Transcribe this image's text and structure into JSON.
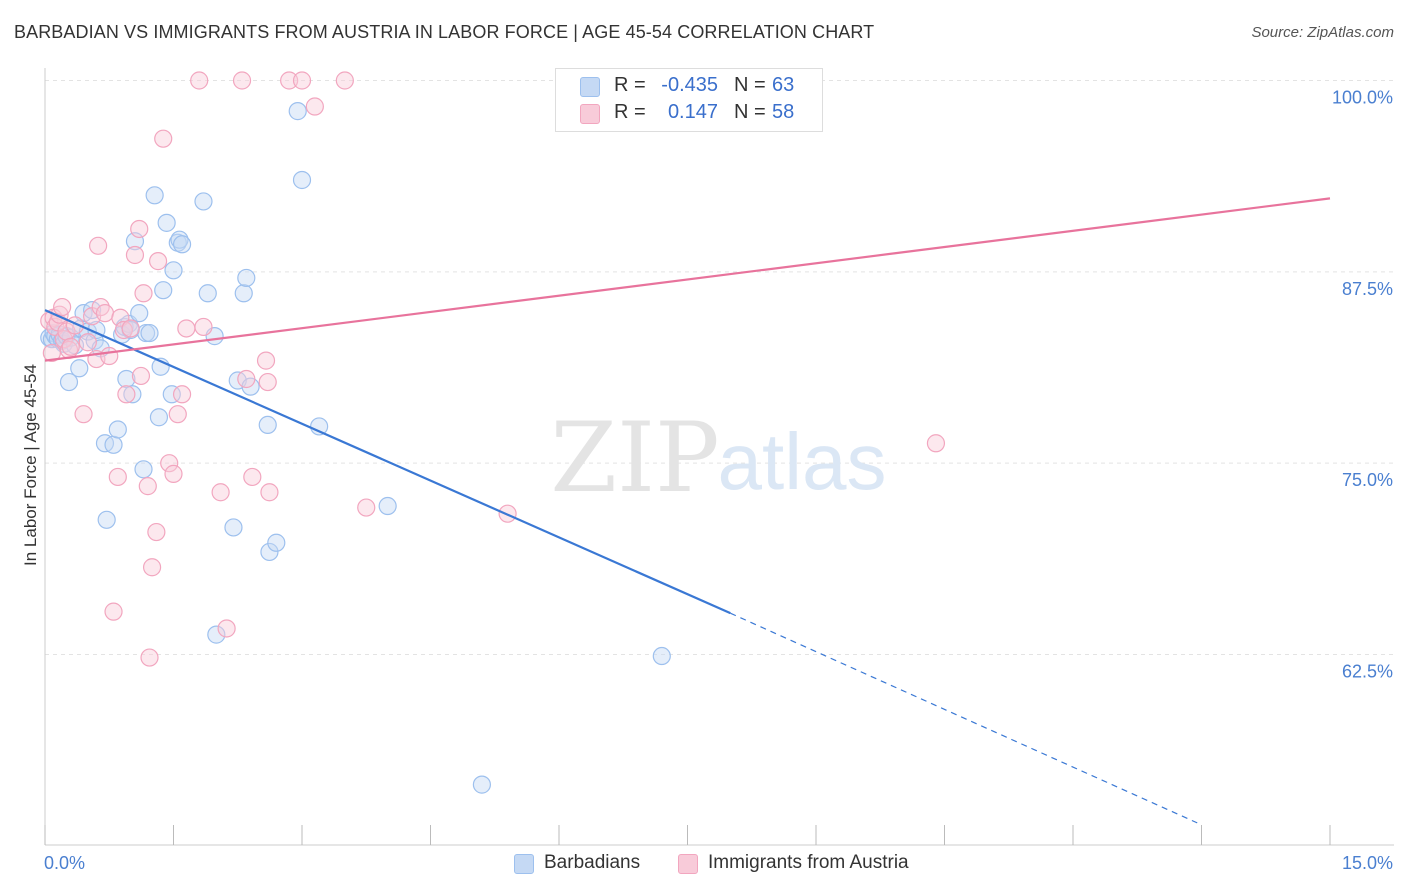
{
  "title": "BARBADIAN VS IMMIGRANTS FROM AUSTRIA IN LABOR FORCE | AGE 45-54 CORRELATION CHART",
  "source": "Source: ZipAtlas.com",
  "watermark": {
    "zip": "ZIP",
    "atlas": "atlas"
  },
  "legend": {
    "r_label": "R =",
    "n_label": "N =",
    "series": [
      {
        "name": "Barbadians",
        "r": "-0.435",
        "n": "63",
        "color": "#9dc0ee",
        "fill": "#c5d9f4"
      },
      {
        "name": "Immigrants from Austria",
        "r": "0.147",
        "n": "58",
        "color": "#f2a6bf",
        "fill": "#f8cbd9"
      }
    ]
  },
  "chart_data": {
    "type": "scatter",
    "title": "BARBADIAN VS IMMIGRANTS FROM AUSTRIA IN LABOR FORCE | AGE 45-54 CORRELATION CHART",
    "xlabel": "",
    "ylabel": "In Labor Force | Age 45-54",
    "xlim": [
      0,
      15
    ],
    "ylim": [
      51,
      102
    ],
    "x_tick_labels": [
      "0.0%",
      "15.0%"
    ],
    "y_ticks": [
      62.5,
      75.0,
      87.5,
      100.0
    ],
    "y_tick_labels": [
      "62.5%",
      "75.0%",
      "87.5%",
      "100.0%"
    ],
    "legend_position": "bottom-center",
    "series": [
      {
        "name": "Barbadians",
        "color": "#3a78d4",
        "r": -0.435,
        "n": 63,
        "trendline": {
          "x": [
            0,
            8.0
          ],
          "y": [
            85.0,
            65.2
          ],
          "dashed_to": {
            "x": 13.45,
            "y": 51.5
          }
        },
        "points": [
          [
            0.05,
            83.2
          ],
          [
            0.08,
            83.1
          ],
          [
            0.1,
            83.5
          ],
          [
            0.12,
            83.3
          ],
          [
            0.15,
            83.1
          ],
          [
            0.17,
            83.4
          ],
          [
            0.2,
            83.0
          ],
          [
            0.22,
            82.8
          ],
          [
            0.25,
            83.3
          ],
          [
            0.28,
            80.3
          ],
          [
            0.3,
            83.2
          ],
          [
            0.35,
            82.7
          ],
          [
            0.4,
            81.2
          ],
          [
            0.42,
            83.8
          ],
          [
            0.45,
            84.8
          ],
          [
            0.5,
            83.6
          ],
          [
            0.55,
            85.0
          ],
          [
            0.58,
            83.0
          ],
          [
            0.6,
            83.7
          ],
          [
            0.65,
            82.5
          ],
          [
            0.7,
            76.3
          ],
          [
            0.72,
            71.3
          ],
          [
            0.8,
            76.2
          ],
          [
            0.85,
            77.2
          ],
          [
            0.9,
            83.4
          ],
          [
            0.93,
            83.9
          ],
          [
            0.95,
            80.5
          ],
          [
            0.98,
            84.1
          ],
          [
            1.0,
            83.7
          ],
          [
            1.02,
            79.5
          ],
          [
            1.05,
            89.5
          ],
          [
            1.1,
            84.8
          ],
          [
            1.15,
            74.6
          ],
          [
            1.18,
            83.5
          ],
          [
            1.22,
            83.5
          ],
          [
            1.28,
            92.5
          ],
          [
            1.33,
            78.0
          ],
          [
            1.35,
            81.3
          ],
          [
            1.38,
            86.3
          ],
          [
            1.42,
            90.7
          ],
          [
            1.48,
            79.5
          ],
          [
            1.5,
            87.6
          ],
          [
            1.55,
            89.4
          ],
          [
            1.57,
            89.6
          ],
          [
            1.6,
            89.3
          ],
          [
            1.85,
            92.1
          ],
          [
            1.9,
            86.1
          ],
          [
            1.98,
            83.3
          ],
          [
            2.0,
            63.8
          ],
          [
            2.2,
            70.8
          ],
          [
            2.25,
            80.4
          ],
          [
            2.32,
            86.1
          ],
          [
            2.35,
            87.1
          ],
          [
            2.4,
            80.0
          ],
          [
            2.6,
            77.5
          ],
          [
            2.62,
            69.2
          ],
          [
            2.7,
            69.8
          ],
          [
            2.95,
            98.0
          ],
          [
            3.0,
            93.5
          ],
          [
            3.2,
            77.4
          ],
          [
            4.0,
            72.2
          ],
          [
            5.1,
            54.0
          ],
          [
            7.2,
            62.4
          ]
        ]
      },
      {
        "name": "Immigrants from Austria",
        "color": "#e8739c",
        "r": 0.147,
        "n": 58,
        "trendline": {
          "x": [
            0,
            15.0
          ],
          "y": [
            81.7,
            92.3
          ]
        },
        "points": [
          [
            0.05,
            84.3
          ],
          [
            0.08,
            82.2
          ],
          [
            0.1,
            84.5
          ],
          [
            0.12,
            83.9
          ],
          [
            0.15,
            84.2
          ],
          [
            0.17,
            84.7
          ],
          [
            0.2,
            85.2
          ],
          [
            0.22,
            83.1
          ],
          [
            0.25,
            83.6
          ],
          [
            0.28,
            82.4
          ],
          [
            0.3,
            82.6
          ],
          [
            0.35,
            84.0
          ],
          [
            0.45,
            78.2
          ],
          [
            0.5,
            82.9
          ],
          [
            0.55,
            84.6
          ],
          [
            0.6,
            81.8
          ],
          [
            0.62,
            89.2
          ],
          [
            0.65,
            85.2
          ],
          [
            0.7,
            84.8
          ],
          [
            0.75,
            82.0
          ],
          [
            0.8,
            65.3
          ],
          [
            0.85,
            74.1
          ],
          [
            0.88,
            84.5
          ],
          [
            0.92,
            83.7
          ],
          [
            0.95,
            79.5
          ],
          [
            1.0,
            83.8
          ],
          [
            1.05,
            88.6
          ],
          [
            1.1,
            90.3
          ],
          [
            1.12,
            80.7
          ],
          [
            1.15,
            86.1
          ],
          [
            1.2,
            73.5
          ],
          [
            1.22,
            62.3
          ],
          [
            1.25,
            68.2
          ],
          [
            1.3,
            70.5
          ],
          [
            1.32,
            88.2
          ],
          [
            1.38,
            96.2
          ],
          [
            1.45,
            75.0
          ],
          [
            1.5,
            74.3
          ],
          [
            1.55,
            78.2
          ],
          [
            1.6,
            79.5
          ],
          [
            1.65,
            83.8
          ],
          [
            1.8,
            100.0
          ],
          [
            1.85,
            83.9
          ],
          [
            2.05,
            73.1
          ],
          [
            2.12,
            64.2
          ],
          [
            2.3,
            100.0
          ],
          [
            2.35,
            80.5
          ],
          [
            2.42,
            74.1
          ],
          [
            2.58,
            81.7
          ],
          [
            2.6,
            80.3
          ],
          [
            2.62,
            73.1
          ],
          [
            2.85,
            100.0
          ],
          [
            3.0,
            100.0
          ],
          [
            3.15,
            98.3
          ],
          [
            3.5,
            100.0
          ],
          [
            3.75,
            72.1
          ],
          [
            5.4,
            71.7
          ],
          [
            10.4,
            76.3
          ]
        ]
      }
    ]
  }
}
